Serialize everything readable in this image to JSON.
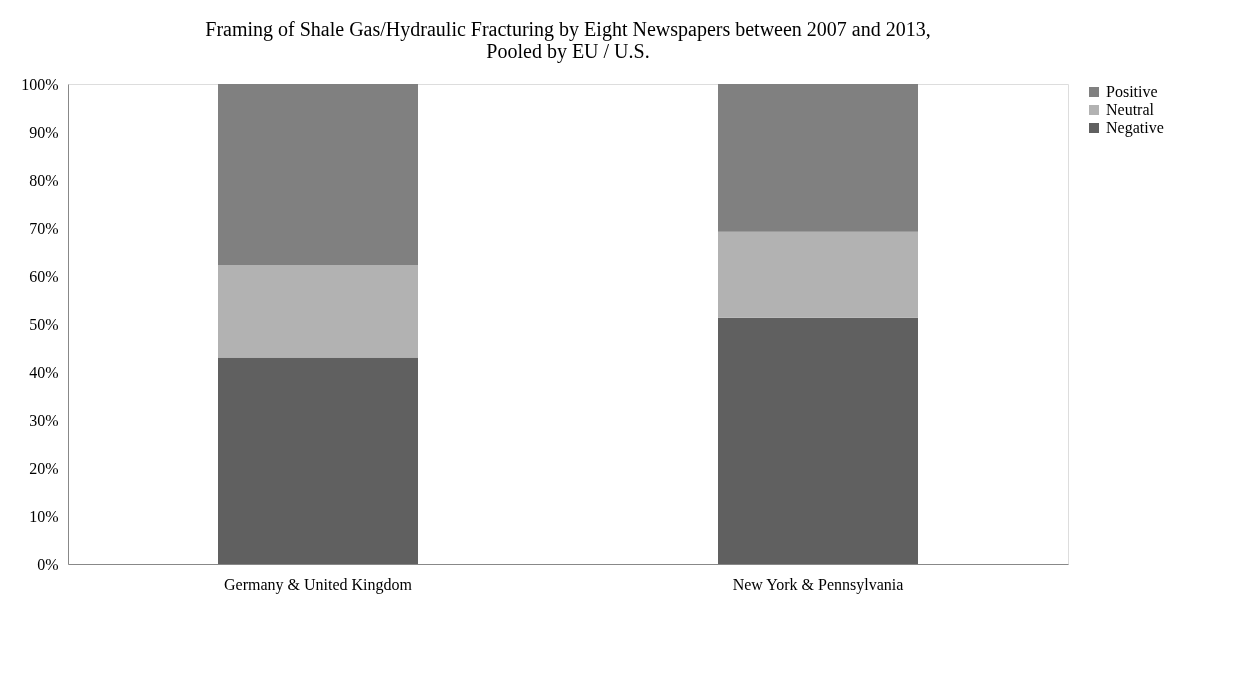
{
  "chart_data": {
    "type": "bar",
    "title": "Framing of Shale Gas/Hydraulic Fracturing by Eight Newspapers between 2007 and 2013,\nPooled by EU / U.S.",
    "categories": [
      "Germany & United Kingdom",
      "New York & Pennsylvania"
    ],
    "stacked": true,
    "series": [
      {
        "name": "Negative",
        "color": "#606060",
        "values": [
          43,
          51.3
        ]
      },
      {
        "name": "Neutral",
        "color": "#b2b2b2",
        "values": [
          19.3,
          17.9
        ]
      },
      {
        "name": "Positive",
        "color": "#808080",
        "values": [
          37.7,
          30.8
        ]
      }
    ],
    "ylim": [
      0,
      100
    ],
    "yticks": [
      {
        "value": 0,
        "label": "0%"
      },
      {
        "value": 10,
        "label": "10%"
      },
      {
        "value": 20,
        "label": "20%"
      },
      {
        "value": 30,
        "label": "30%"
      },
      {
        "value": 40,
        "label": "40%"
      },
      {
        "value": 50,
        "label": "50%"
      },
      {
        "value": 60,
        "label": "60%"
      },
      {
        "value": 70,
        "label": "70%"
      },
      {
        "value": 80,
        "label": "80%"
      },
      {
        "value": 90,
        "label": "90%"
      },
      {
        "value": 100,
        "label": "100%"
      }
    ],
    "grid": false,
    "legend": "right"
  }
}
